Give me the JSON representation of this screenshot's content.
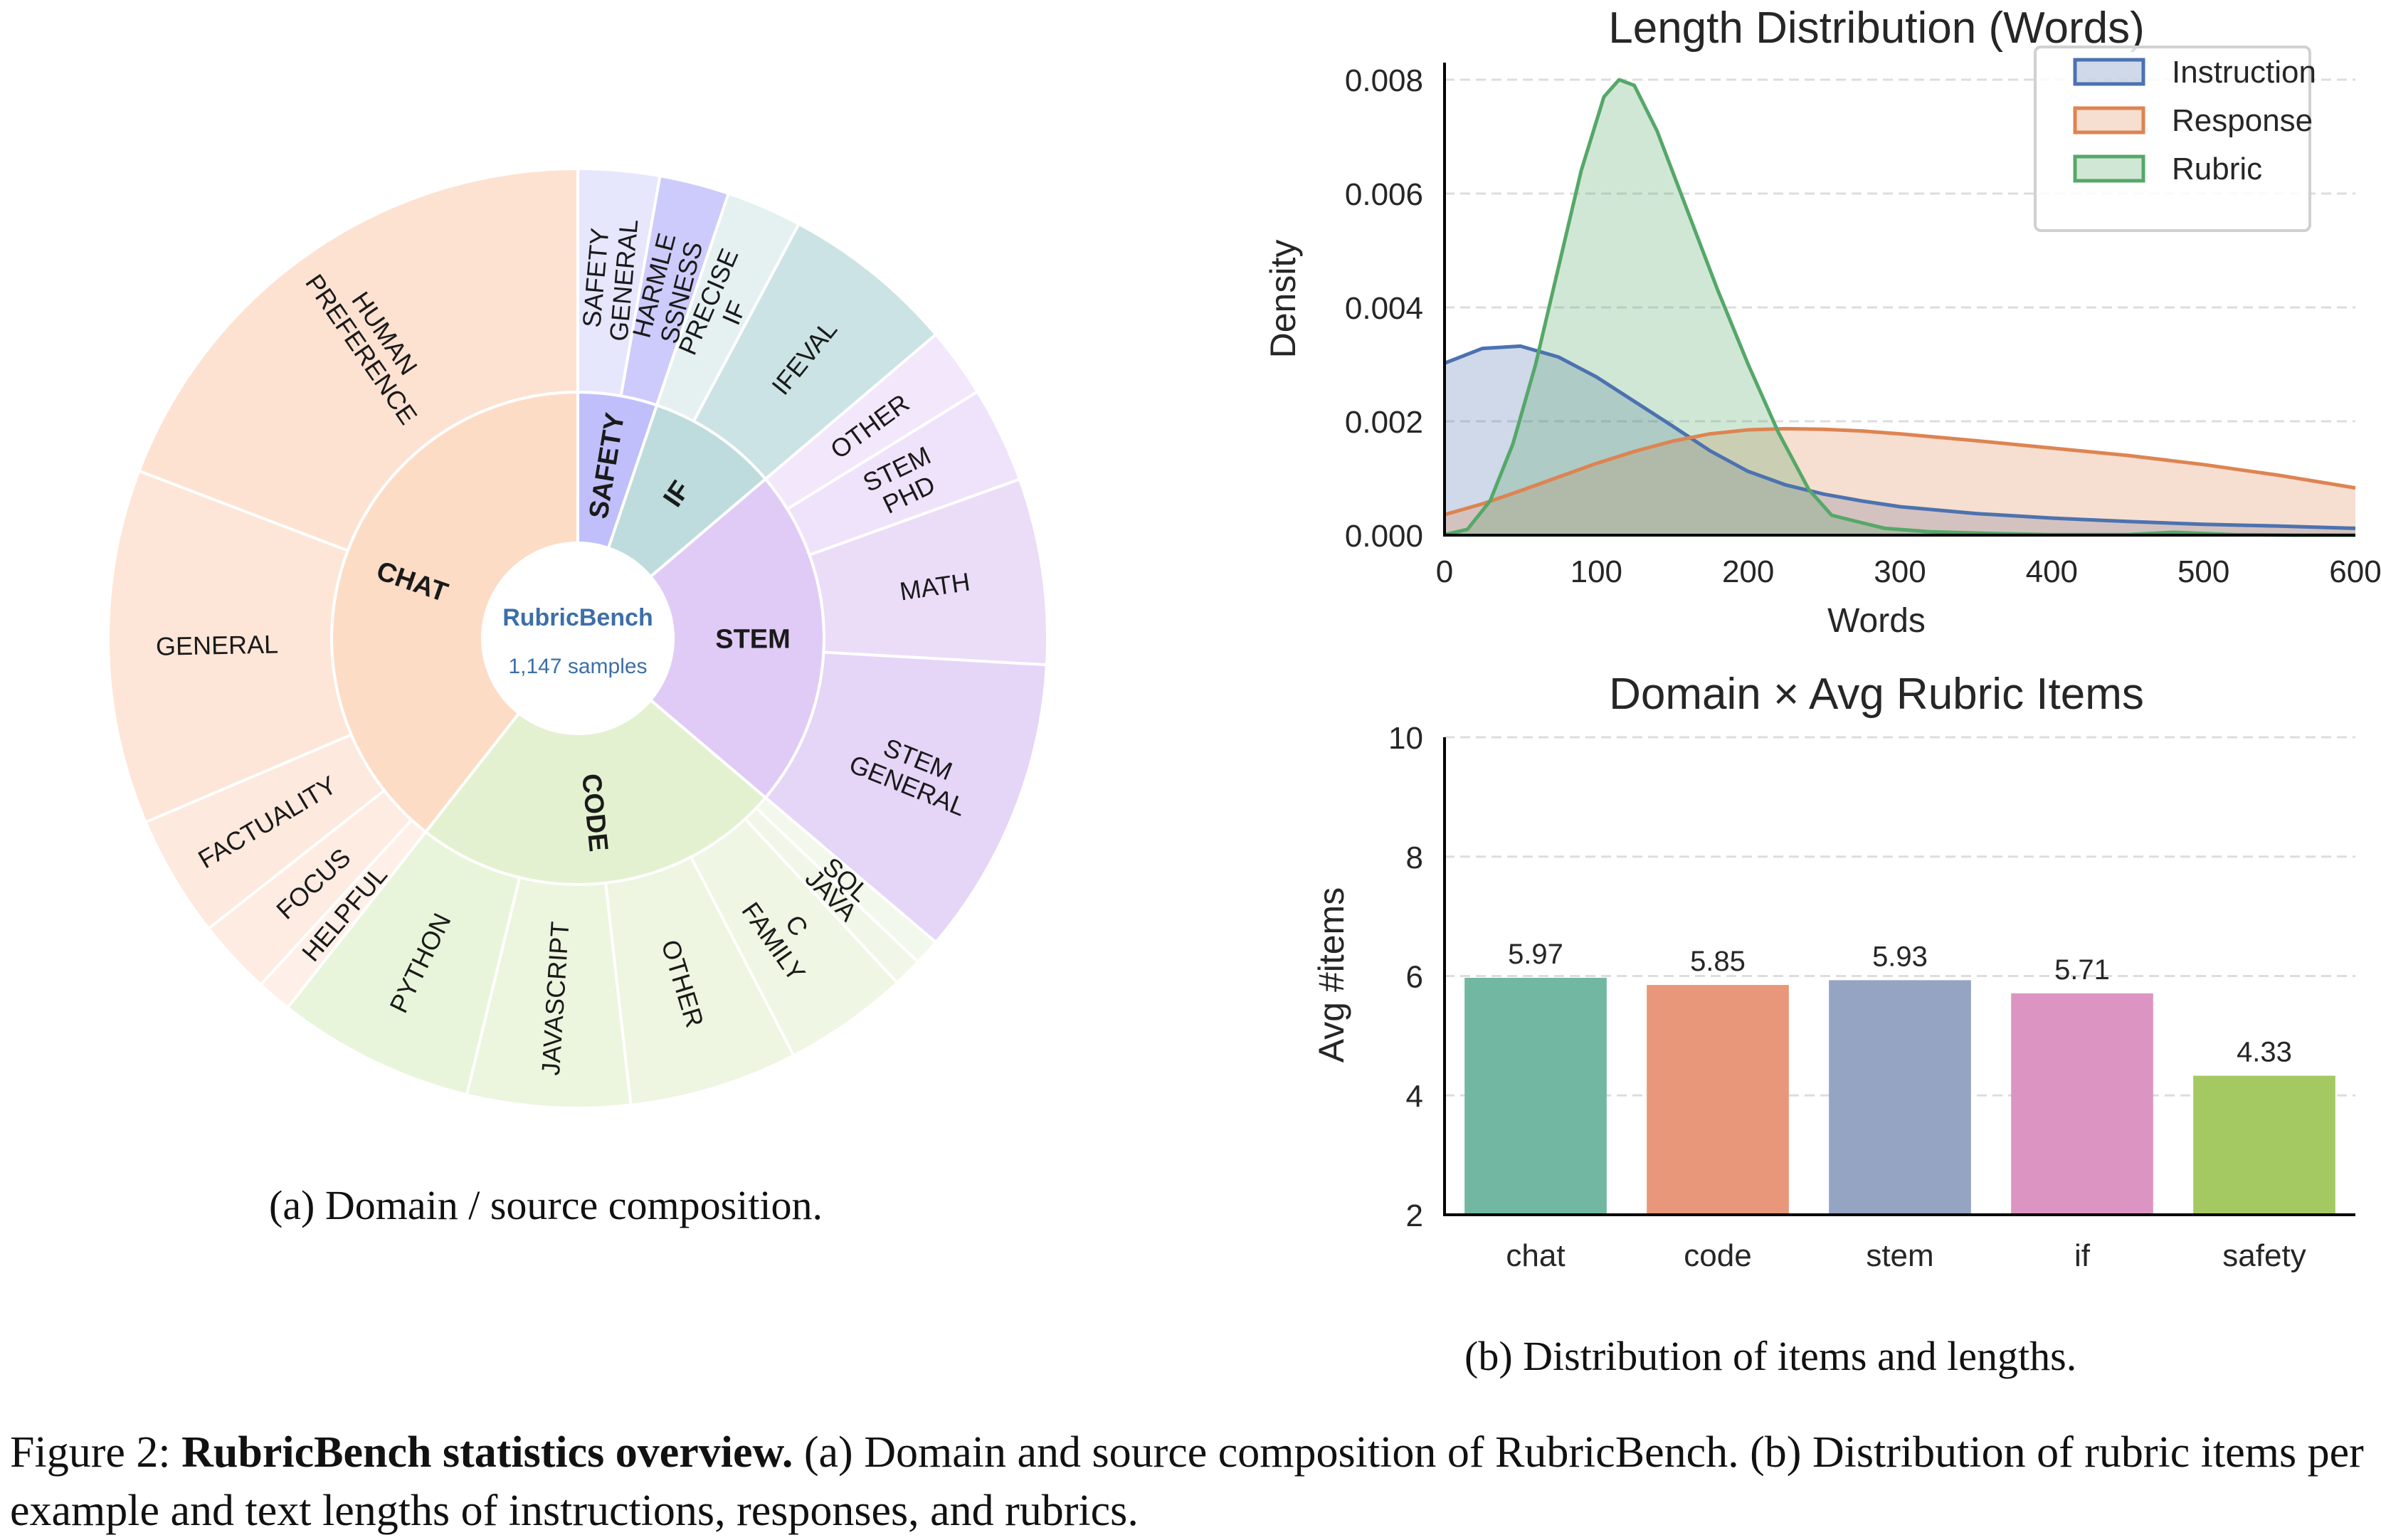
{
  "figure": {
    "caption_prefix": "Figure 2:",
    "caption_bold": "RubricBench statistics overview.",
    "caption_rest": " (a) Domain and source composition of RubricBench. (b) Distribution of rubric items per example and text lengths of instructions, responses, and rubrics.",
    "subcaption_a": "(a) Domain / source composition.",
    "subcaption_b": "(b) Distribution of items and lengths."
  },
  "chart_data": [
    {
      "type": "sunburst",
      "center_title": "RubricBench",
      "center_subtitle": "1,147 samples",
      "center_color": "#3d6fa8",
      "domains": [
        {
          "name": "SAFETY",
          "share_pct": 5.2,
          "color": "#c0bffb",
          "sources": [
            {
              "name": "SAFETY\nGENERAL",
              "share_pct": 2.8,
              "color": "#e6e6fd"
            },
            {
              "name": "HARMLE\nSSNESS",
              "share_pct": 2.4,
              "color": "#cdcbfb"
            }
          ]
        },
        {
          "name": "IF",
          "share_pct": 8.6,
          "color": "#bedcdd",
          "sources": [
            {
              "name": "PRECISE\nIF",
              "share_pct": 2.6,
              "color": "#e5f0f1"
            },
            {
              "name": "IFEVAL",
              "share_pct": 6.0,
              "color": "#cbe3e4"
            }
          ]
        },
        {
          "name": "STEM",
          "share_pct": 22.4,
          "color": "#e0cbf6",
          "sources": [
            {
              "name": "OTHER",
              "share_pct": 2.4,
              "color": "#f3e7fb"
            },
            {
              "name": "STEM\nPHD",
              "share_pct": 3.3,
              "color": "#efe3fb"
            },
            {
              "name": "MATH",
              "share_pct": 6.4,
              "color": "#ebdcf8"
            },
            {
              "name": "STEM\nGENERAL",
              "share_pct": 10.3,
              "color": "#e5d5f7"
            }
          ]
        },
        {
          "name": "CODE",
          "share_pct": 24.4,
          "color": "#e4f1d0",
          "sources": [
            {
              "name": "SQL",
              "share_pct": 0.9,
              "color": "#f3f8ec"
            },
            {
              "name": "JAVA",
              "share_pct": 1.0,
              "color": "#f1f7e8"
            },
            {
              "name": "C\nFAMILY",
              "share_pct": 4.3,
              "color": "#eff6e3"
            },
            {
              "name": "OTHER",
              "share_pct": 5.8,
              "color": "#eef5e0"
            },
            {
              "name": "JAVASCRIPT",
              "share_pct": 5.6,
              "color": "#ecf5de"
            },
            {
              "name": "PYTHON",
              "share_pct": 6.8,
              "color": "#e8f5da"
            }
          ]
        },
        {
          "name": "CHAT",
          "share_pct": 39.4,
          "color": "#fddcc6",
          "sources": [
            {
              "name": "HELPFUL",
              "share_pct": 1.2,
              "color": "#fef0e8"
            },
            {
              "name": "FOCUS",
              "share_pct": 2.6,
              "color": "#feece2"
            },
            {
              "name": "FACTUALITY",
              "share_pct": 4.2,
              "color": "#fde9dd"
            },
            {
              "name": "GENERAL",
              "share_pct": 12.2,
              "color": "#fde6d8"
            },
            {
              "name": "HUMAN\nPREFERENCE",
              "share_pct": 19.2,
              "color": "#fde2d2"
            }
          ]
        }
      ]
    },
    {
      "type": "area",
      "title": "Length Distribution (Words)",
      "xlabel": "Words",
      "ylabel": "Density",
      "xlim": [
        0,
        600
      ],
      "ylim": [
        0,
        0.0083
      ],
      "xticks": [
        0,
        100,
        200,
        300,
        400,
        500,
        600
      ],
      "yticks": [
        "0.000",
        "0.002",
        "0.004",
        "0.006",
        "0.008"
      ],
      "ytick_values": [
        0,
        0.002,
        0.004,
        0.006,
        0.008
      ],
      "grid": "y-dashed",
      "legend_position": "top-right",
      "series": [
        {
          "name": "Instruction",
          "color": "#4c72b0",
          "x": [
            0,
            25,
            50,
            75,
            100,
            125,
            150,
            175,
            200,
            225,
            250,
            275,
            300,
            350,
            400,
            450,
            500,
            550,
            600
          ],
          "y": [
            0.00302,
            0.00328,
            0.00332,
            0.00313,
            0.00278,
            0.00235,
            0.00192,
            0.00148,
            0.00112,
            0.00088,
            0.00072,
            0.0006,
            0.0005,
            0.00038,
            0.0003,
            0.00024,
            0.00019,
            0.00016,
            0.00012
          ]
        },
        {
          "name": "Response",
          "color": "#dd8452",
          "x": [
            0,
            25,
            50,
            75,
            100,
            125,
            150,
            175,
            200,
            225,
            250,
            275,
            300,
            350,
            400,
            450,
            500,
            550,
            600
          ],
          "y": [
            0.00036,
            0.00055,
            0.00078,
            0.00102,
            0.00126,
            0.00147,
            0.00165,
            0.00178,
            0.00185,
            0.00187,
            0.00186,
            0.00183,
            0.00178,
            0.00166,
            0.00153,
            0.0014,
            0.00124,
            0.00105,
            0.00083
          ]
        },
        {
          "name": "Rubric",
          "color": "#55a868",
          "x": [
            0,
            15,
            30,
            45,
            60,
            75,
            90,
            105,
            115,
            125,
            140,
            160,
            180,
            200,
            220,
            240,
            255,
            270,
            290,
            320,
            360,
            400,
            450,
            480,
            520,
            560,
            600
          ],
          "y": [
            1e-05,
            0.0001,
            0.0006,
            0.0016,
            0.003,
            0.0047,
            0.0064,
            0.0077,
            0.008,
            0.0079,
            0.0071,
            0.0057,
            0.0043,
            0.003,
            0.0018,
            0.0008,
            0.00035,
            0.00025,
            0.00012,
            6e-05,
            3e-05,
            1e-05,
            1e-05,
            5e-05,
            1e-05,
            0.0,
            0.0
          ]
        }
      ]
    },
    {
      "type": "bar",
      "title": "Domain × Avg Rubric Items",
      "xlabel": "",
      "ylabel": "Avg #items",
      "categories": [
        "chat",
        "code",
        "stem",
        "if",
        "safety"
      ],
      "values": [
        5.97,
        5.85,
        5.93,
        5.71,
        4.33
      ],
      "labels": [
        "5.97",
        "5.85",
        "5.93",
        "5.71",
        "4.33"
      ],
      "colors": [
        "#72b7a1",
        "#e8977a",
        "#95a4c3",
        "#dc95c2",
        "#a4c963"
      ],
      "ylim": [
        2,
        10
      ],
      "yticks": [
        2,
        4,
        6,
        8,
        10
      ],
      "grid": "y-dashed"
    }
  ]
}
